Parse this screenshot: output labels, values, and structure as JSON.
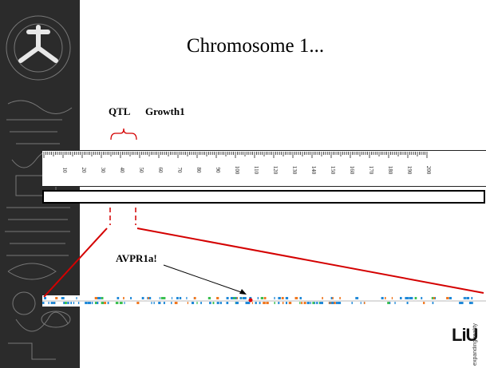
{
  "slide": {
    "title": "Chromosome 1...",
    "qtl_label": "QTL",
    "qtl_name": "Growth1",
    "gene_label": "AVPR1a!"
  },
  "ruler": {
    "tick_labels": [
      "10",
      "20",
      "30",
      "40",
      "50",
      "60",
      "70",
      "80",
      "90",
      "100",
      "110",
      "120",
      "130",
      "140",
      "150",
      "160",
      "170",
      "180",
      "190",
      "200"
    ]
  },
  "branding": {
    "logo_text": "LiU",
    "tagline": "expanding reality"
  },
  "colors": {
    "zoom_lines": "#d40000",
    "gene_blue": "#1e88d8",
    "gene_orange": "#f07820",
    "gene_green": "#3cc050",
    "gene_red": "#e00000"
  }
}
